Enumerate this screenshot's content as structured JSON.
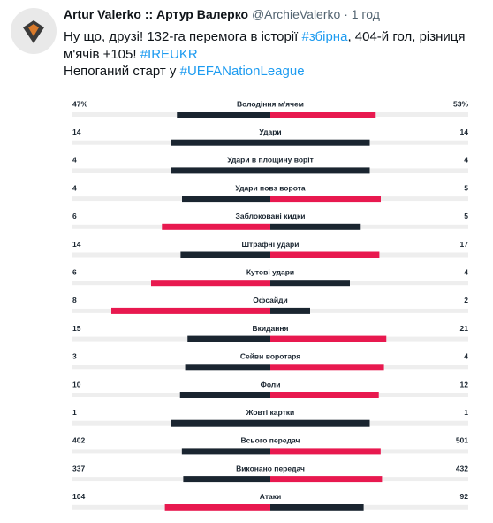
{
  "header": {
    "name": "Artur Valerko :: Артур Валерко",
    "handle": "@ArchieValerko",
    "separator": "·",
    "time": "1 год"
  },
  "text": {
    "lines": [
      [
        {
          "t": "Ну що, друзі! 132-га перемога в історії "
        },
        {
          "t": "#збірна",
          "link": true
        },
        {
          "t": ", 404-й гол, різниця"
        }
      ],
      [
        {
          "t": "м'ячів +105! "
        },
        {
          "t": "#IREUKR",
          "link": true
        }
      ],
      [
        {
          "t": "Непоганий старт у "
        },
        {
          "t": "#UEFANationLeague",
          "link": true
        }
      ]
    ]
  },
  "stats": {
    "highlight_color": "#e8194f",
    "base_color": "#1a2530",
    "track_color": "#eeeeee",
    "rows": [
      {
        "label": "Володіння м'ячем",
        "left": 47,
        "right": 53,
        "left_label": "47%",
        "right_label": "53%"
      },
      {
        "label": "Удари",
        "left": 14,
        "right": 14
      },
      {
        "label": "Удари в площину воріт",
        "left": 4,
        "right": 4
      },
      {
        "label": "Удари повз ворота",
        "left": 4,
        "right": 5
      },
      {
        "label": "Заблоковані кидки",
        "left": 6,
        "right": 5
      },
      {
        "label": "Штрафні удари",
        "left": 14,
        "right": 17
      },
      {
        "label": "Кутові удари",
        "left": 6,
        "right": 4
      },
      {
        "label": "Офсайди",
        "left": 8,
        "right": 2
      },
      {
        "label": "Вкидання",
        "left": 15,
        "right": 21
      },
      {
        "label": "Сейви воротаря",
        "left": 3,
        "right": 4
      },
      {
        "label": "Фоли",
        "left": 10,
        "right": 12
      },
      {
        "label": "Жовті картки",
        "left": 1,
        "right": 1
      },
      {
        "label": "Всього передач",
        "left": 402,
        "right": 501
      },
      {
        "label": "Виконано передач",
        "left": 337,
        "right": 432
      },
      {
        "label": "Атаки",
        "left": 104,
        "right": 92
      }
    ]
  }
}
